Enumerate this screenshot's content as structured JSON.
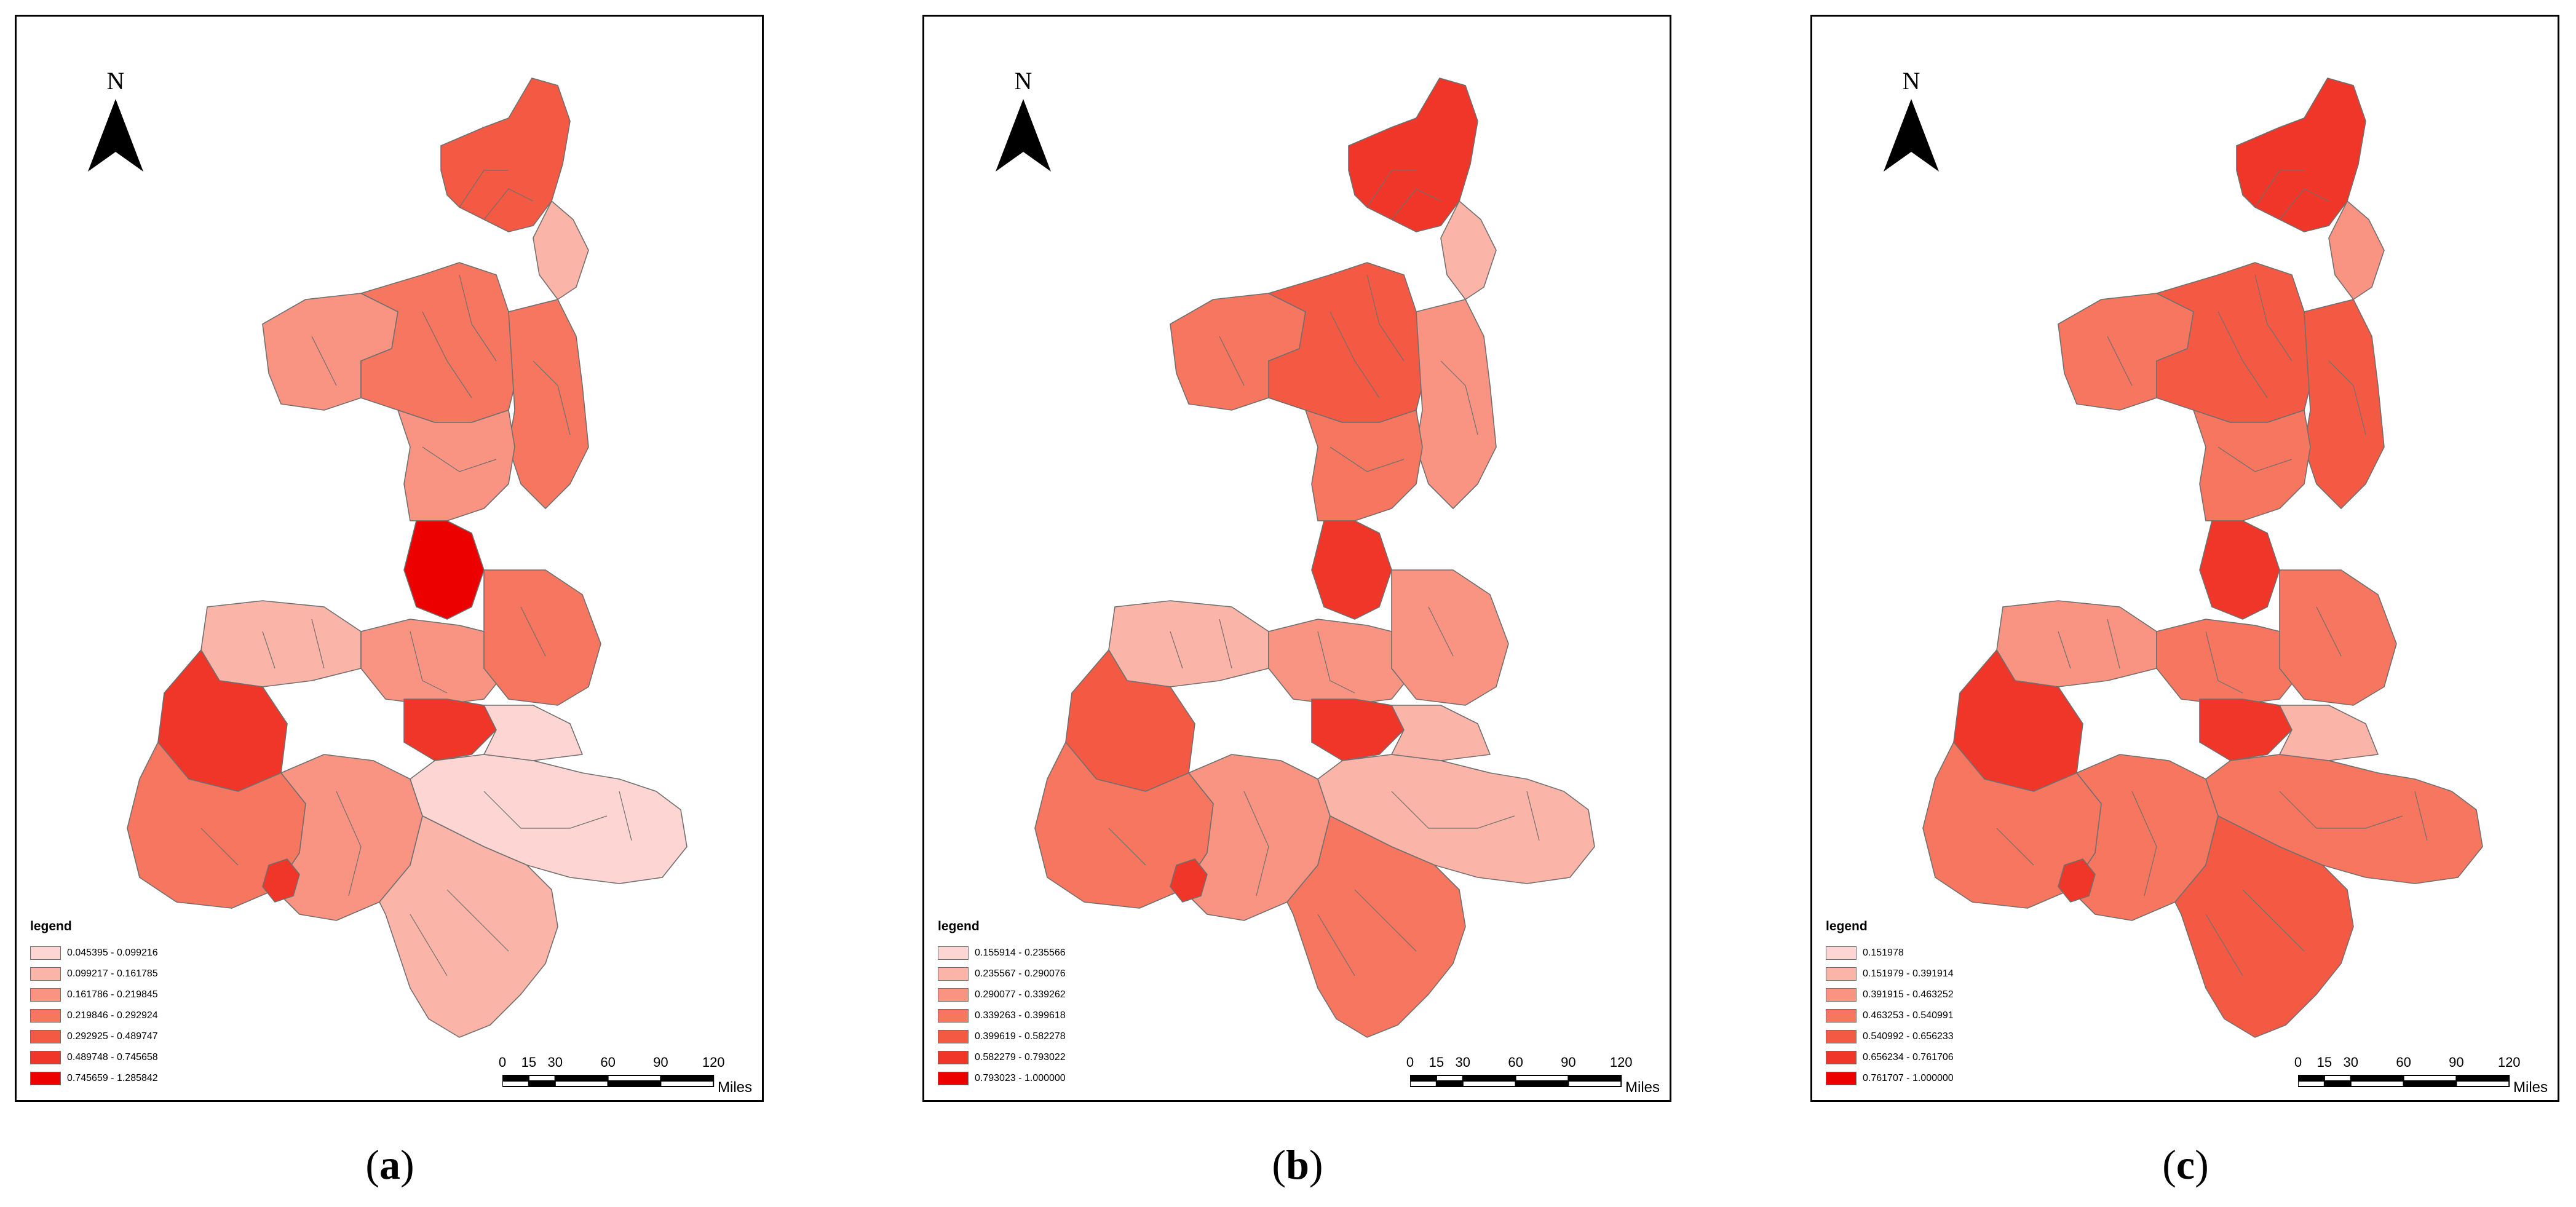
{
  "north_label": "N",
  "scale": {
    "ticks": [
      "0",
      "15",
      "30",
      "60",
      "90",
      "120"
    ],
    "unit": "Miles"
  },
  "legend_title": "legend",
  "region_outline_color": "#6f6f6f",
  "panels": [
    {
      "id": "a",
      "caption_open": "(",
      "caption_letter": "a",
      "caption_close": ")",
      "classes": [
        {
          "label": "0.045395 - 0.099216",
          "color": "#fdd6d3"
        },
        {
          "label": "0.099217 - 0.161785",
          "color": "#fbb4a8"
        },
        {
          "label": "0.161786 - 0.219845",
          "color": "#f99482"
        },
        {
          "label": "0.219846 - 0.292924",
          "color": "#f7765f"
        },
        {
          "label": "0.292925 - 0.489747",
          "color": "#f45a43"
        },
        {
          "label": "0.489748 - 0.745658",
          "color": "#f03628"
        },
        {
          "label": "0.745659 - 1.285842",
          "color": "#ec0000"
        }
      ],
      "region_classes": {
        "north": 4,
        "northwest": 2,
        "northcenter": 3,
        "northeast": 1,
        "centerwest": 2,
        "centereast": 3,
        "core": 6,
        "guanzhong_w": 1,
        "guanzhong_c": 2,
        "guanzhong_e": 3,
        "xian": 5,
        "baoji": 5,
        "southwest": 3,
        "southcenter": 2,
        "southeast": 0,
        "ankang": 1,
        "shangluo": 0,
        "hanzhong_city": 5
      }
    },
    {
      "id": "b",
      "caption_open": "(",
      "caption_letter": "b",
      "caption_close": ")",
      "classes": [
        {
          "label": "0.155914 - 0.235566",
          "color": "#fdd6d3"
        },
        {
          "label": "0.235567 - 0.290076",
          "color": "#fbb4a8"
        },
        {
          "label": "0.290077 - 0.339262",
          "color": "#f99482"
        },
        {
          "label": "0.339263 - 0.399618",
          "color": "#f7765f"
        },
        {
          "label": "0.399619 - 0.582278",
          "color": "#f45a43"
        },
        {
          "label": "0.582279 - 0.793022",
          "color": "#f03628"
        },
        {
          "label": "0.793023 - 1.000000",
          "color": "#ec0000"
        }
      ],
      "region_classes": {
        "north": 5,
        "northwest": 3,
        "northcenter": 4,
        "northeast": 1,
        "centerwest": 3,
        "centereast": 2,
        "core": 5,
        "guanzhong_w": 1,
        "guanzhong_c": 2,
        "guanzhong_e": 2,
        "xian": 5,
        "baoji": 4,
        "southwest": 3,
        "southcenter": 2,
        "southeast": 1,
        "ankang": 3,
        "shangluo": 1,
        "hanzhong_city": 5
      }
    },
    {
      "id": "c",
      "caption_open": "(",
      "caption_letter": "c",
      "caption_close": ")",
      "classes": [
        {
          "label": "0.151978",
          "color": "#fdd6d3"
        },
        {
          "label": "0.151979 - 0.391914",
          "color": "#fbb4a8"
        },
        {
          "label": "0.391915 - 0.463252",
          "color": "#f99482"
        },
        {
          "label": "0.463253 - 0.540991",
          "color": "#f7765f"
        },
        {
          "label": "0.540992 - 0.656233",
          "color": "#f45a43"
        },
        {
          "label": "0.656234 - 0.761706",
          "color": "#f03628"
        },
        {
          "label": "0.761707 - 1.000000",
          "color": "#ec0000"
        }
      ],
      "region_classes": {
        "north": 5,
        "northwest": 3,
        "northcenter": 4,
        "northeast": 2,
        "centerwest": 3,
        "centereast": 4,
        "core": 5,
        "guanzhong_w": 2,
        "guanzhong_c": 3,
        "guanzhong_e": 3,
        "xian": 5,
        "baoji": 5,
        "southwest": 3,
        "southcenter": 3,
        "southeast": 1,
        "ankang": 4,
        "shangluo": 3,
        "hanzhong_city": 5
      }
    }
  ]
}
